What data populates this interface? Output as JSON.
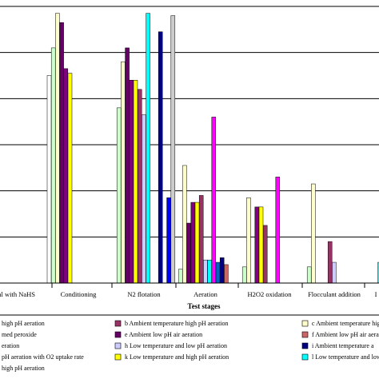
{
  "chart_data": {
    "type": "bar",
    "title": "",
    "xlabel": "Test stages",
    "ylabel": "",
    "ylim": [
      0,
      6
    ],
    "grid": true,
    "legend_position": "bottom",
    "categories": [
      "al with NaHS",
      "Conditioning",
      "N2 flotation",
      "Aeration",
      "H2O2 oxidation",
      "Flocculant addition",
      "I"
    ],
    "series": [
      {
        "name": "high pH aeration",
        "color": "#ffffff",
        "values": [
          null,
          4.5,
          null,
          null,
          null,
          null,
          null
        ]
      },
      {
        "name": "b Ambient temperature high pH aeration",
        "color": "#993366",
        "values": [
          null,
          null,
          4.2,
          1.9,
          1.25,
          0.9,
          null
        ]
      },
      {
        "name": "c Ambient temperature high",
        "color": "#ffffcc",
        "values": [
          null,
          5.85,
          4.8,
          2.55,
          1.85,
          2.15,
          null
        ]
      },
      {
        "name": "eration",
        "color": "#ccffcc",
        "values": [
          null,
          5.1,
          3.8,
          0.3,
          0.35,
          0.35,
          null
        ]
      },
      {
        "name": "e Ambient low pH air aeration",
        "color": "#660066",
        "values": [
          null,
          5.65,
          5.1,
          1.3,
          null,
          null,
          null
        ]
      },
      {
        "name": "f Ambient low pH air aeration",
        "color": "#cc6666",
        "values": [
          null,
          null,
          null,
          0.4,
          null,
          null,
          null
        ]
      },
      {
        "name": "med peroxide",
        "color": "#0066cc",
        "values": [
          null,
          null,
          null,
          0.45,
          null,
          null,
          null
        ]
      },
      {
        "name": "h Low temperature and low pH aeration",
        "color": "#ccccff",
        "values": [
          null,
          null,
          3.65,
          0.5,
          null,
          0.45,
          null
        ]
      },
      {
        "name": "i Ambient temperature a",
        "color": "#000080",
        "values": [
          null,
          null,
          5.45,
          0.55,
          null,
          null,
          null
        ]
      },
      {
        "name": "pH aeration with O2 uptake rate",
        "color": "#ff00ff",
        "values": [
          null,
          null,
          null,
          3.6,
          2.3,
          null,
          null
        ]
      },
      {
        "name": "k Low temperature and high pH aeration",
        "color": "#ffff00",
        "values": [
          null,
          4.55,
          4.4,
          1.75,
          1.65,
          null,
          null
        ]
      },
      {
        "name": "l Low temperature and low",
        "color": "#00ffff",
        "values": [
          null,
          null,
          5.85,
          0.5,
          null,
          null,
          0.45
        ]
      },
      {
        "name": "high pH aeration",
        "color": "#800080",
        "values": [
          null,
          4.65,
          4.4,
          1.75,
          1.65,
          null,
          null
        ]
      },
      {
        "name": "",
        "color": "#0000ff",
        "values": [
          null,
          null,
          1.85,
          null,
          null,
          null,
          null
        ]
      },
      {
        "name": "",
        "color": "#cccccc",
        "values": [
          null,
          null,
          5.8,
          null,
          null,
          null,
          null
        ]
      }
    ],
    "legend": {
      "rows": [
        [
          {
            "label": "high pH aeration",
            "color": "#ffffff"
          },
          {
            "label": "b Ambient temperature high pH aeration",
            "color": "#993366"
          },
          {
            "label": "c Ambient temperature high",
            "color": "#ffffcc"
          }
        ],
        [
          {
            "label": "med peroxide",
            "color": "#ffffff"
          },
          {
            "label": "e Ambient low pH air aeration",
            "color": "#660066"
          },
          {
            "label": "f Ambient low pH air aeration",
            "color": "#cc6666"
          }
        ],
        [
          {
            "label": "eration",
            "color": "#ffffff"
          },
          {
            "label": "h Low temperature and low pH aeration",
            "color": "#ccccff"
          },
          {
            "label": "i Ambient temperature a",
            "color": "#000080"
          }
        ],
        [
          {
            "label": "pH aeration with O2 uptake rate",
            "color": "#ffffff"
          },
          {
            "label": "k Low temperature and high pH aeration",
            "color": "#ffff00"
          },
          {
            "label": "l Low temperature and low",
            "color": "#00ffff"
          }
        ],
        [
          {
            "label": "high pH aeration",
            "color": "#ffffff"
          }
        ]
      ]
    }
  }
}
